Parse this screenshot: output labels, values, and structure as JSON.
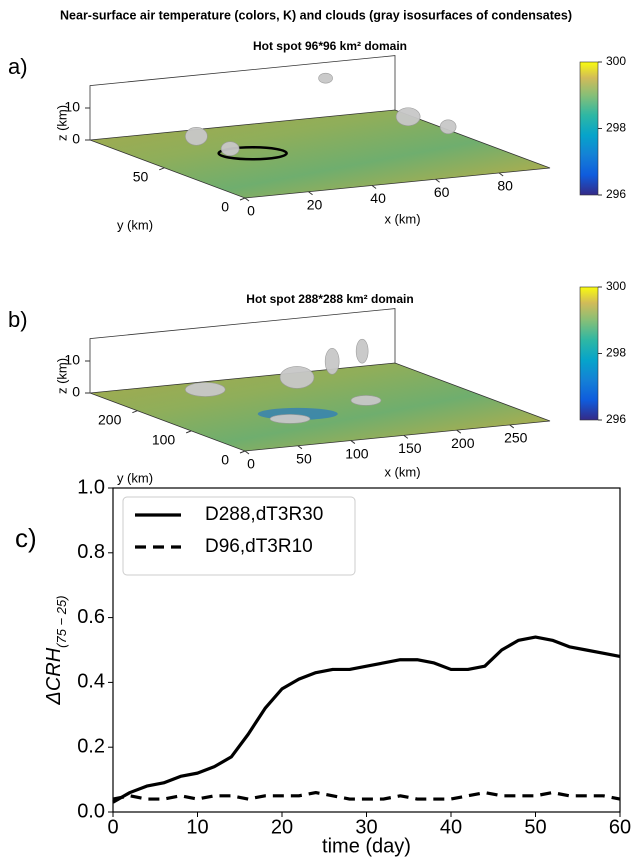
{
  "title": "Near-surface air temperature (colors, K) and clouds (gray isosurfaces of condensates)",
  "chart_data": [
    {
      "type": "surface3d",
      "panel_label": "a)",
      "title": "Hot spot 96*96 km² domain",
      "xlabel": "x (km)",
      "ylabel": "y (km)",
      "zlabel": "z (km)",
      "xlim": [
        0,
        96
      ],
      "ylim": [
        0,
        96
      ],
      "zlim": [
        0,
        17
      ],
      "xticks": [
        0,
        20,
        40,
        60,
        80
      ],
      "yticks": [
        0,
        50
      ],
      "zticks": [
        0,
        10
      ],
      "clim": [
        296,
        300
      ],
      "cticks": [
        296,
        298,
        300
      ]
    },
    {
      "type": "surface3d",
      "panel_label": "b)",
      "title": "Hot spot 288*288 km² domain",
      "xlabel": "x (km)",
      "ylabel": "y (km)",
      "zlabel": "z (km)",
      "xlim": [
        0,
        288
      ],
      "ylim": [
        0,
        288
      ],
      "zlim": [
        0,
        17
      ],
      "xticks": [
        0,
        50,
        100,
        150,
        200,
        250
      ],
      "yticks": [
        0,
        100,
        200
      ],
      "zticks": [
        0,
        10
      ],
      "clim": [
        296,
        300
      ],
      "cticks": [
        296,
        298,
        300
      ]
    },
    {
      "type": "line",
      "panel_label": "c)",
      "xlabel": "time (day)",
      "ylabel": "ΔCRH",
      "ylabel_sub": "(75 − 25)",
      "xlim": [
        0,
        60
      ],
      "ylim": [
        0,
        1.0
      ],
      "xticks": [
        0,
        10,
        20,
        30,
        40,
        50,
        60
      ],
      "yticks": [
        {
          "value": 0,
          "label": "0.0"
        },
        0.2,
        0.4,
        0.6,
        0.8,
        {
          "value": 1.0,
          "label": "1.0"
        }
      ],
      "legend": "upper left",
      "x": [
        0,
        2,
        4,
        6,
        8,
        10,
        12,
        14,
        16,
        18,
        20,
        22,
        24,
        26,
        28,
        30,
        32,
        34,
        36,
        38,
        40,
        42,
        44,
        46,
        48,
        50,
        52,
        54,
        56,
        58,
        60
      ],
      "series": [
        {
          "name": "D288,dT3R30",
          "color": "#000000",
          "dash": false,
          "values": [
            0.03,
            0.06,
            0.08,
            0.09,
            0.11,
            0.12,
            0.14,
            0.17,
            0.24,
            0.32,
            0.38,
            0.41,
            0.43,
            0.44,
            0.44,
            0.45,
            0.46,
            0.47,
            0.47,
            0.46,
            0.44,
            0.44,
            0.45,
            0.5,
            0.53,
            0.54,
            0.53,
            0.51,
            0.5,
            0.49,
            0.48
          ]
        },
        {
          "name": "D96,dT3R10",
          "color": "#000000",
          "dash": true,
          "values": [
            0.04,
            0.05,
            0.04,
            0.04,
            0.05,
            0.04,
            0.05,
            0.05,
            0.04,
            0.05,
            0.05,
            0.05,
            0.06,
            0.05,
            0.04,
            0.04,
            0.04,
            0.05,
            0.04,
            0.04,
            0.04,
            0.05,
            0.06,
            0.05,
            0.05,
            0.05,
            0.06,
            0.05,
            0.05,
            0.05,
            0.04
          ]
        }
      ]
    }
  ]
}
